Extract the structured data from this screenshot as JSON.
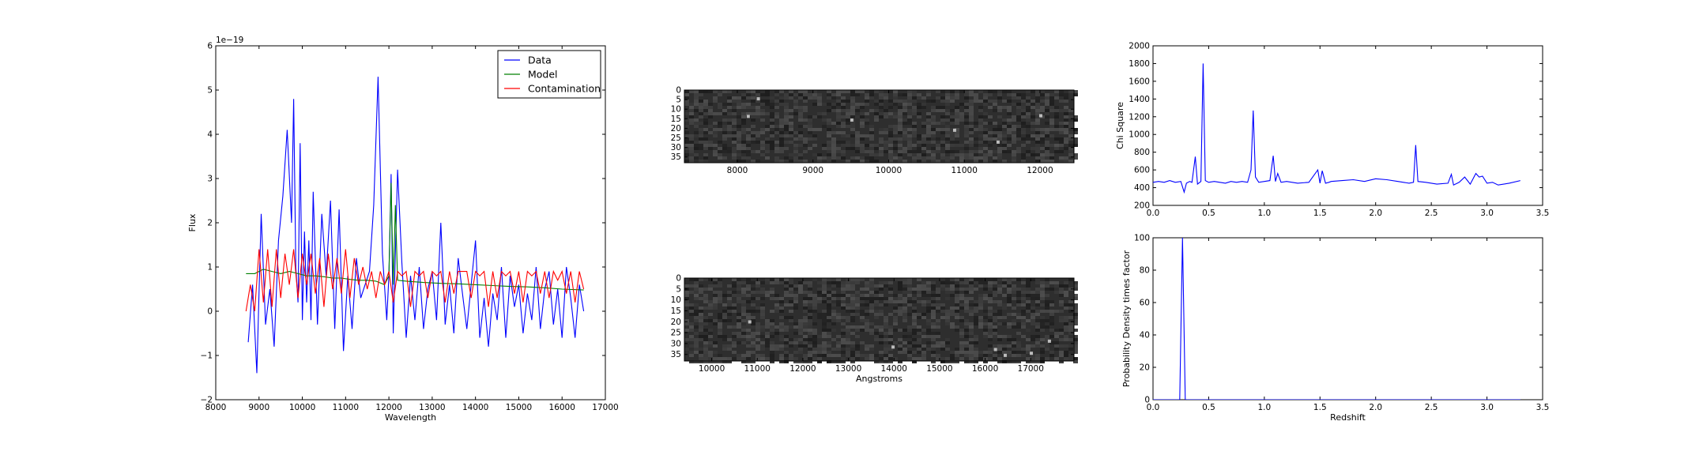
{
  "colors": {
    "data": "#0000ff",
    "model": "#008000",
    "contamination": "#ff0000",
    "image_bg": "#2e2e2e"
  },
  "chart_data": [
    {
      "type": "line",
      "id": "spectrum",
      "xlabel": "Wavelength",
      "ylabel": "Flux",
      "offset_text": "1e−19",
      "xlim": [
        8000,
        17000
      ],
      "ylim": [
        -2,
        6
      ],
      "xticks": [
        8000,
        9000,
        10000,
        11000,
        12000,
        13000,
        14000,
        15000,
        16000,
        17000
      ],
      "yticks": [
        -2,
        -1,
        0,
        1,
        2,
        3,
        4,
        5,
        6
      ],
      "legend": "top-right",
      "series": [
        {
          "name": "Data",
          "color": "#0000ff",
          "x": [
            8750,
            8850,
            8950,
            9050,
            9150,
            9250,
            9350,
            9450,
            9550,
            9650,
            9750,
            9800,
            9850,
            9900,
            9950,
            10000,
            10050,
            10100,
            10150,
            10200,
            10250,
            10350,
            10450,
            10550,
            10650,
            10750,
            10850,
            10950,
            11050,
            11150,
            11250,
            11350,
            11450,
            11550,
            11650,
            11750,
            11850,
            11950,
            12000,
            12050,
            12100,
            12200,
            12300,
            12400,
            12500,
            12600,
            12700,
            12800,
            12900,
            13000,
            13100,
            13200,
            13300,
            13400,
            13500,
            13600,
            13700,
            13800,
            13900,
            14000,
            14100,
            14200,
            14300,
            14400,
            14500,
            14600,
            14700,
            14800,
            14900,
            15000,
            15100,
            15200,
            15300,
            15400,
            15500,
            15600,
            15700,
            15800,
            15900,
            16000,
            16100,
            16200,
            16300,
            16400,
            16500
          ],
          "values": [
            -0.7,
            0.6,
            -1.4,
            2.2,
            -0.3,
            0.5,
            -0.8,
            1.6,
            2.6,
            4.1,
            2.0,
            4.8,
            1.0,
            0.2,
            3.8,
            -0.2,
            1.8,
            0.2,
            1.6,
            -0.2,
            2.7,
            -0.3,
            2.2,
            0.8,
            2.5,
            -0.4,
            2.3,
            -0.9,
            0.8,
            -0.4,
            1.2,
            0.3,
            0.6,
            0.9,
            2.4,
            5.3,
            1.3,
            -0.2,
            0.8,
            3.1,
            -0.5,
            3.2,
            1.1,
            -0.6,
            0.8,
            -0.2,
            1.0,
            -0.4,
            0.5,
            0.9,
            -0.2,
            2.0,
            -0.3,
            0.6,
            -0.5,
            1.2,
            0.4,
            -0.4,
            0.6,
            1.6,
            -0.6,
            0.3,
            -0.8,
            0.4,
            -0.2,
            1.0,
            -0.6,
            0.8,
            0.1,
            0.6,
            -0.5,
            0.4,
            -0.2,
            1.0,
            -0.4,
            0.5,
            0.9,
            -0.3,
            0.5,
            -0.6,
            1.0,
            0.3,
            -0.6,
            0.6,
            0.0
          ]
        },
        {
          "name": "Model",
          "color": "#008000",
          "x": [
            8700,
            8900,
            9100,
            9300,
            9500,
            9700,
            9900,
            10100,
            10300,
            10500,
            10700,
            10900,
            11100,
            11300,
            11500,
            11700,
            11900,
            12000,
            12050,
            12100,
            12150,
            12200,
            12400,
            12800,
            13200,
            13600,
            14000,
            14400,
            14800,
            15200,
            15600,
            16000,
            16500
          ],
          "values": [
            0.85,
            0.85,
            0.95,
            0.9,
            0.85,
            0.9,
            0.85,
            0.8,
            0.8,
            0.78,
            0.75,
            0.75,
            0.72,
            0.7,
            0.7,
            0.68,
            0.6,
            0.8,
            2.9,
            0.6,
            2.4,
            0.7,
            0.68,
            0.65,
            0.63,
            0.62,
            0.6,
            0.58,
            0.56,
            0.55,
            0.53,
            0.5,
            0.48
          ]
        },
        {
          "name": "Contamination",
          "color": "#ff0000",
          "x": [
            8700,
            8800,
            8900,
            9000,
            9100,
            9200,
            9300,
            9400,
            9500,
            9600,
            9700,
            9800,
            9900,
            10000,
            10100,
            10200,
            10300,
            10400,
            10500,
            10600,
            10700,
            10800,
            10900,
            11000,
            11100,
            11200,
            11300,
            11400,
            11500,
            11600,
            11700,
            11800,
            11900,
            12000,
            12100,
            12200,
            12300,
            12400,
            12500,
            12600,
            12700,
            12800,
            12900,
            13000,
            13100,
            13200,
            13300,
            13400,
            13500,
            13600,
            13700,
            13800,
            13900,
            14000,
            14100,
            14200,
            14300,
            14400,
            14500,
            14600,
            14700,
            14800,
            14900,
            15000,
            15100,
            15200,
            15300,
            15400,
            15500,
            15600,
            15700,
            15800,
            15900,
            16000,
            16100,
            16200,
            16300,
            16400,
            16500
          ],
          "values": [
            0.0,
            0.6,
            0.0,
            1.4,
            0.2,
            1.4,
            0.1,
            1.4,
            0.3,
            1.3,
            0.6,
            1.4,
            0.3,
            1.3,
            0.6,
            1.3,
            0.4,
            1.2,
            0.1,
            1.3,
            0.5,
            1.2,
            0.4,
            1.4,
            0.3,
            1.2,
            0.6,
            1.0,
            0.5,
            0.9,
            0.3,
            0.9,
            0.6,
            0.9,
            0.2,
            0.9,
            0.8,
            0.9,
            0.1,
            0.9,
            0.8,
            0.9,
            0.3,
            0.9,
            0.8,
            0.9,
            0.2,
            0.9,
            0.4,
            0.9,
            0.9,
            0.9,
            0.3,
            0.9,
            0.8,
            0.9,
            0.1,
            0.9,
            0.3,
            0.9,
            0.8,
            0.9,
            0.4,
            0.9,
            0.2,
            0.9,
            0.8,
            0.9,
            0.4,
            0.9,
            0.3,
            0.9,
            0.7,
            0.9,
            0.4,
            0.9,
            0.2,
            0.9,
            0.5
          ]
        }
      ]
    },
    {
      "type": "heatmap",
      "id": "image-top",
      "xlim": [
        7300,
        12450
      ],
      "ylim": [
        38,
        0
      ],
      "xticks": [
        8000,
        9000,
        10000,
        11000,
        12000
      ],
      "yticks": [
        0,
        5,
        10,
        15,
        20,
        25,
        30,
        35
      ]
    },
    {
      "type": "heatmap",
      "id": "image-bottom",
      "xlabel": "Angstroms",
      "xlim": [
        9400,
        17950
      ],
      "ylim": [
        38,
        0
      ],
      "xticks": [
        10000,
        11000,
        12000,
        13000,
        14000,
        15000,
        16000,
        17000
      ],
      "yticks": [
        0,
        5,
        10,
        15,
        20,
        25,
        30,
        35
      ]
    },
    {
      "type": "line",
      "id": "chisq",
      "ylabel": "Chi Square",
      "xlim": [
        0.0,
        3.5
      ],
      "ylim": [
        200,
        2000
      ],
      "xticks": [
        0.0,
        0.5,
        1.0,
        1.5,
        2.0,
        2.5,
        3.0,
        3.5
      ],
      "yticks": [
        200,
        400,
        600,
        800,
        1000,
        1200,
        1400,
        1600,
        1800,
        2000
      ],
      "series": [
        {
          "color": "#0000ff",
          "x": [
            0.0,
            0.05,
            0.1,
            0.15,
            0.2,
            0.25,
            0.28,
            0.3,
            0.33,
            0.35,
            0.38,
            0.4,
            0.43,
            0.45,
            0.47,
            0.5,
            0.55,
            0.6,
            0.65,
            0.7,
            0.75,
            0.8,
            0.85,
            0.88,
            0.9,
            0.92,
            0.95,
            1.0,
            1.05,
            1.08,
            1.1,
            1.12,
            1.15,
            1.2,
            1.3,
            1.4,
            1.48,
            1.5,
            1.52,
            1.55,
            1.58,
            1.6,
            1.7,
            1.8,
            1.9,
            2.0,
            2.1,
            2.2,
            2.3,
            2.34,
            2.36,
            2.38,
            2.45,
            2.55,
            2.65,
            2.68,
            2.7,
            2.75,
            2.8,
            2.85,
            2.9,
            2.93,
            2.96,
            3.0,
            3.05,
            3.1,
            3.2,
            3.3
          ],
          "values": [
            460,
            470,
            460,
            480,
            460,
            470,
            350,
            450,
            470,
            460,
            750,
            440,
            470,
            1800,
            480,
            460,
            470,
            460,
            450,
            470,
            460,
            470,
            460,
            600,
            1270,
            520,
            460,
            470,
            480,
            760,
            470,
            560,
            460,
            470,
            450,
            460,
            600,
            450,
            590,
            450,
            460,
            470,
            480,
            490,
            470,
            500,
            490,
            470,
            450,
            460,
            880,
            470,
            460,
            440,
            450,
            550,
            430,
            460,
            520,
            440,
            560,
            520,
            530,
            450,
            460,
            430,
            450,
            480
          ]
        }
      ]
    },
    {
      "type": "line",
      "id": "pdf",
      "xlabel": "Redshift",
      "ylabel": "Probability Density times factor",
      "xlim": [
        0.0,
        3.5
      ],
      "ylim": [
        0,
        100
      ],
      "xticks": [
        0.0,
        0.5,
        1.0,
        1.5,
        2.0,
        2.5,
        3.0,
        3.5
      ],
      "yticks": [
        0,
        20,
        40,
        60,
        80,
        100
      ],
      "series": [
        {
          "color": "#0000ff",
          "x": [
            0.0,
            0.24,
            0.255,
            0.265,
            0.275,
            0.29,
            3.3
          ],
          "values": [
            0,
            0,
            60,
            100,
            60,
            0,
            0
          ]
        }
      ]
    }
  ]
}
